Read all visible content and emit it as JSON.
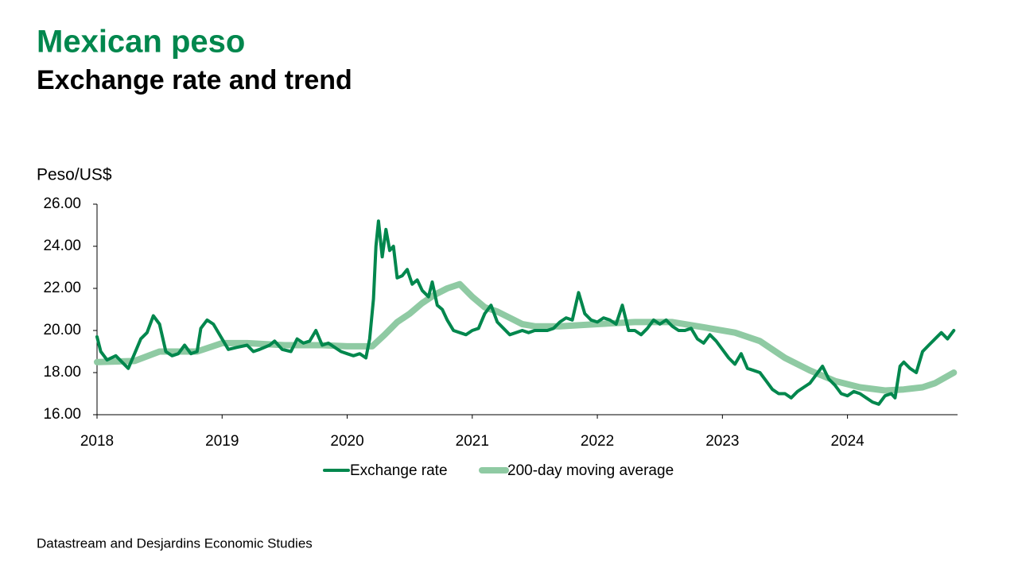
{
  "chart_data": {
    "type": "line",
    "title": "Mexican peso",
    "subtitle": "Exchange rate and trend",
    "y_label": "Peso/US$",
    "source": "Datastream and Desjardins Economic Studies",
    "xlim": [
      2018,
      2024.88
    ],
    "xticks": [
      2018,
      2019,
      2020,
      2021,
      2022,
      2023,
      2024
    ],
    "ylim": [
      16,
      26
    ],
    "yticks": [
      {
        "value": 16,
        "label": "16.00"
      },
      {
        "value": 18,
        "label": "18.00"
      },
      {
        "value": 20,
        "label": "20.00"
      },
      {
        "value": 22,
        "label": "22.00"
      },
      {
        "value": 24,
        "label": "24.00"
      },
      {
        "value": 26,
        "label": "26.00"
      }
    ],
    "legend": "bottom",
    "series": [
      {
        "name": "Exchange rate",
        "color": "#00874d",
        "x": [
          2018.0,
          2018.03,
          2018.08,
          2018.15,
          2018.2,
          2018.25,
          2018.3,
          2018.35,
          2018.4,
          2018.45,
          2018.5,
          2018.55,
          2018.6,
          2018.65,
          2018.7,
          2018.75,
          2018.8,
          2018.83,
          2018.88,
          2018.93,
          2019.0,
          2019.05,
          2019.12,
          2019.2,
          2019.25,
          2019.3,
          2019.38,
          2019.42,
          2019.48,
          2019.55,
          2019.6,
          2019.65,
          2019.7,
          2019.75,
          2019.8,
          2019.85,
          2019.9,
          2019.95,
          2020.0,
          2020.05,
          2020.1,
          2020.15,
          2020.18,
          2020.21,
          2020.23,
          2020.25,
          2020.28,
          2020.31,
          2020.34,
          2020.37,
          2020.4,
          2020.44,
          2020.48,
          2020.52,
          2020.56,
          2020.6,
          2020.65,
          2020.68,
          2020.72,
          2020.76,
          2020.8,
          2020.85,
          2020.9,
          2020.95,
          2021.0,
          2021.05,
          2021.1,
          2021.15,
          2021.2,
          2021.25,
          2021.3,
          2021.35,
          2021.4,
          2021.45,
          2021.5,
          2021.55,
          2021.6,
          2021.65,
          2021.7,
          2021.75,
          2021.8,
          2021.85,
          2021.9,
          2021.95,
          2022.0,
          2022.05,
          2022.1,
          2022.15,
          2022.2,
          2022.25,
          2022.3,
          2022.35,
          2022.4,
          2022.45,
          2022.5,
          2022.55,
          2022.6,
          2022.65,
          2022.7,
          2022.75,
          2022.8,
          2022.85,
          2022.9,
          2022.95,
          2023.0,
          2023.05,
          2023.1,
          2023.15,
          2023.2,
          2023.25,
          2023.3,
          2023.35,
          2023.4,
          2023.45,
          2023.5,
          2023.55,
          2023.6,
          2023.65,
          2023.7,
          2023.75,
          2023.8,
          2023.85,
          2023.9,
          2023.95,
          2024.0,
          2024.05,
          2024.1,
          2024.15,
          2024.2,
          2024.25,
          2024.3,
          2024.35,
          2024.38,
          2024.42,
          2024.45,
          2024.5,
          2024.55,
          2024.6,
          2024.65,
          2024.7,
          2024.75,
          2024.8,
          2024.85
        ],
        "values": [
          19.7,
          19.0,
          18.6,
          18.8,
          18.5,
          18.2,
          18.9,
          19.6,
          19.9,
          20.7,
          20.3,
          19.0,
          18.8,
          18.9,
          19.3,
          18.9,
          19.0,
          20.1,
          20.5,
          20.3,
          19.6,
          19.1,
          19.2,
          19.3,
          19.0,
          19.1,
          19.3,
          19.5,
          19.1,
          19.0,
          19.6,
          19.4,
          19.5,
          20.0,
          19.3,
          19.4,
          19.2,
          19.0,
          18.9,
          18.8,
          18.9,
          18.7,
          19.6,
          21.5,
          24.0,
          25.2,
          23.5,
          24.8,
          23.8,
          24.0,
          22.5,
          22.6,
          22.9,
          22.2,
          22.4,
          21.9,
          21.6,
          22.3,
          21.2,
          21.0,
          20.5,
          20.0,
          19.9,
          19.8,
          20.0,
          20.1,
          20.8,
          21.2,
          20.4,
          20.1,
          19.8,
          19.9,
          20.0,
          19.9,
          20.0,
          20.0,
          20.0,
          20.1,
          20.4,
          20.6,
          20.5,
          21.8,
          20.8,
          20.5,
          20.4,
          20.6,
          20.5,
          20.3,
          21.2,
          20.0,
          20.0,
          19.8,
          20.1,
          20.5,
          20.3,
          20.5,
          20.2,
          20.0,
          20.0,
          20.1,
          19.6,
          19.4,
          19.8,
          19.5,
          19.1,
          18.7,
          18.4,
          18.9,
          18.2,
          18.1,
          18.0,
          17.6,
          17.2,
          17.0,
          17.0,
          16.8,
          17.1,
          17.3,
          17.5,
          17.9,
          18.3,
          17.7,
          17.4,
          17.0,
          16.9,
          17.1,
          17.0,
          16.8,
          16.6,
          16.5,
          16.9,
          17.0,
          16.8,
          18.3,
          18.5,
          18.2,
          18.0,
          19.0,
          19.3,
          19.6,
          19.9,
          19.6,
          20.0
        ]
      },
      {
        "name": "200-day moving average",
        "color": "#8fcaa3",
        "x": [
          2018.0,
          2018.3,
          2018.5,
          2018.8,
          2019.0,
          2019.2,
          2019.5,
          2019.8,
          2020.0,
          2020.2,
          2020.3,
          2020.4,
          2020.5,
          2020.6,
          2020.7,
          2020.8,
          2020.9,
          2021.0,
          2021.1,
          2021.2,
          2021.3,
          2021.4,
          2021.5,
          2021.7,
          2022.0,
          2022.3,
          2022.6,
          2022.9,
          2023.1,
          2023.3,
          2023.5,
          2023.7,
          2023.9,
          2024.1,
          2024.3,
          2024.45,
          2024.6,
          2024.7,
          2024.85
        ],
        "values": [
          18.5,
          18.55,
          19.0,
          19.0,
          19.4,
          19.4,
          19.3,
          19.3,
          19.25,
          19.25,
          19.8,
          20.4,
          20.8,
          21.3,
          21.7,
          22.0,
          22.2,
          21.6,
          21.1,
          20.9,
          20.6,
          20.3,
          20.2,
          20.2,
          20.3,
          20.4,
          20.4,
          20.1,
          19.9,
          19.5,
          18.7,
          18.1,
          17.6,
          17.3,
          17.15,
          17.2,
          17.3,
          17.5,
          18.0
        ]
      }
    ]
  }
}
